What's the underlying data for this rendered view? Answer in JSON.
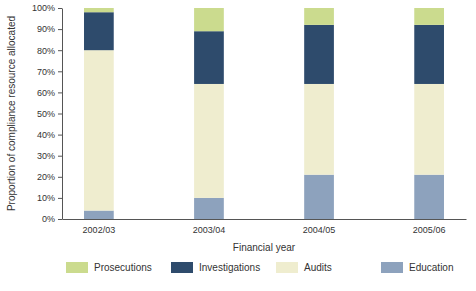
{
  "chart_data": {
    "type": "bar",
    "stacked": true,
    "x_label": "Financial year",
    "y_label": "Proportion of compliance resource allocated",
    "categories": [
      "2002/03",
      "2003/04",
      "2004/05",
      "2005/06"
    ],
    "series": [
      {
        "name": "Education",
        "color": "#8da2bd",
        "values": [
          4,
          10,
          21,
          21
        ]
      },
      {
        "name": "Audits",
        "color": "#efedcf",
        "values": [
          76,
          54,
          43,
          43
        ]
      },
      {
        "name": "Investigations",
        "color": "#2e4b6c",
        "values": [
          18,
          25,
          28,
          28
        ]
      },
      {
        "name": "Prosecutions",
        "color": "#cbdb8e",
        "values": [
          2,
          11,
          8,
          8
        ]
      }
    ],
    "ylim": [
      0,
      100
    ],
    "yticks": [
      {
        "value": 0,
        "label": "0%"
      },
      {
        "value": 10,
        "label": "10%"
      },
      {
        "value": 20,
        "label": "20%"
      },
      {
        "value": 30,
        "label": "30%"
      },
      {
        "value": 40,
        "label": "40%"
      },
      {
        "value": 50,
        "label": "50%"
      },
      {
        "value": 60,
        "label": "60%"
      },
      {
        "value": 70,
        "label": "70%"
      },
      {
        "value": 80,
        "label": "80%"
      },
      {
        "value": 90,
        "label": "90%"
      },
      {
        "value": 100,
        "label": "100%"
      }
    ],
    "grid": false,
    "legend": "bottom"
  }
}
